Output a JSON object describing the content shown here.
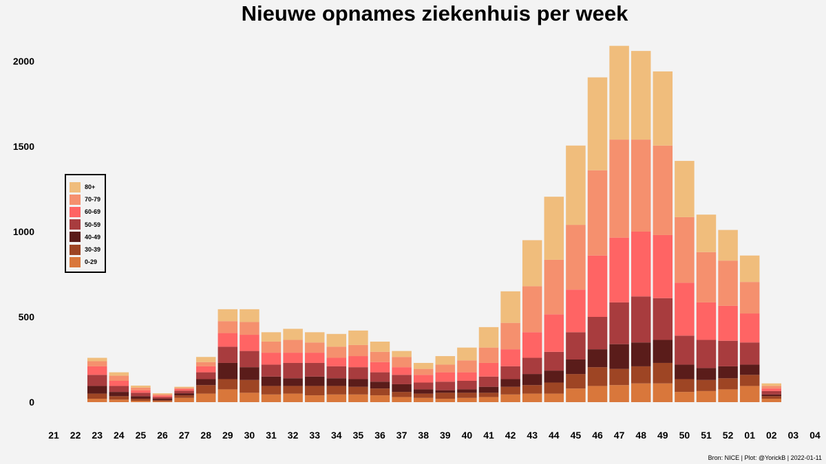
{
  "chart_data": {
    "type": "bar",
    "stacked": true,
    "title": "Nieuwe opnames ziekenhuis per week",
    "xlabel": "",
    "ylabel": "",
    "ylim": [
      0,
      2150
    ],
    "yticks": [
      0,
      500,
      1000,
      1500,
      2000
    ],
    "categories": [
      "21",
      "22",
      "23",
      "24",
      "25",
      "26",
      "27",
      "28",
      "29",
      "30",
      "31",
      "32",
      "33",
      "34",
      "35",
      "36",
      "37",
      "38",
      "39",
      "40",
      "41",
      "42",
      "43",
      "44",
      "45",
      "46",
      "47",
      "48",
      "49",
      "50",
      "51",
      "52",
      "01",
      "02",
      "03",
      "04"
    ],
    "legend_position": "left",
    "series": [
      {
        "name": "0-29",
        "color": "#d9773b",
        "values": [
          0,
          0,
          20,
          15,
          8,
          5,
          25,
          50,
          75,
          55,
          45,
          50,
          40,
          45,
          45,
          40,
          30,
          25,
          20,
          25,
          30,
          45,
          50,
          50,
          80,
          95,
          100,
          110,
          110,
          60,
          65,
          75,
          95,
          20,
          0,
          0
        ]
      },
      {
        "name": "30-39",
        "color": "#9e4524",
        "values": [
          0,
          0,
          30,
          20,
          12,
          7,
          15,
          50,
          60,
          75,
          50,
          45,
          55,
          50,
          45,
          40,
          30,
          25,
          35,
          30,
          25,
          45,
          50,
          65,
          85,
          110,
          95,
          100,
          120,
          75,
          65,
          65,
          65,
          15,
          0,
          0
        ]
      },
      {
        "name": "40-49",
        "color": "#5a1c1a",
        "values": [
          0,
          0,
          45,
          25,
          15,
          8,
          12,
          35,
          95,
          75,
          55,
          45,
          55,
          45,
          45,
          40,
          45,
          25,
          15,
          20,
          35,
          45,
          65,
          70,
          85,
          105,
          145,
          140,
          135,
          85,
          70,
          70,
          60,
          10,
          0,
          0
        ]
      },
      {
        "name": "50-59",
        "color": "#a83c3e",
        "values": [
          0,
          0,
          65,
          35,
          20,
          10,
          15,
          40,
          95,
          95,
          70,
          90,
          80,
          70,
          70,
          55,
          55,
          40,
          50,
          50,
          60,
          75,
          95,
          110,
          160,
          190,
          245,
          270,
          245,
          170,
          165,
          150,
          130,
          20,
          0,
          0
        ]
      },
      {
        "name": "60-69",
        "color": "#ff6464",
        "values": [
          0,
          0,
          50,
          30,
          15,
          8,
          10,
          35,
          80,
          95,
          70,
          60,
          60,
          50,
          65,
          60,
          45,
          45,
          55,
          50,
          80,
          100,
          150,
          220,
          250,
          360,
          380,
          380,
          370,
          310,
          220,
          205,
          170,
          15,
          0,
          0
        ]
      },
      {
        "name": "70-79",
        "color": "#f5906e",
        "values": [
          0,
          0,
          30,
          30,
          15,
          8,
          7,
          25,
          70,
          75,
          65,
          75,
          60,
          65,
          65,
          60,
          60,
          35,
          45,
          70,
          90,
          155,
          270,
          320,
          380,
          500,
          575,
          540,
          525,
          385,
          295,
          265,
          185,
          15,
          0,
          0
        ]
      },
      {
        "name": "80+",
        "color": "#f0bd7c",
        "values": [
          0,
          0,
          20,
          20,
          12,
          6,
          6,
          30,
          70,
          75,
          55,
          65,
          60,
          75,
          85,
          60,
          35,
          35,
          50,
          75,
          120,
          185,
          270,
          370,
          465,
          545,
          550,
          520,
          435,
          330,
          220,
          180,
          155,
          15,
          0,
          0
        ]
      }
    ]
  },
  "source_note": "Bron: NICE | Plot: @YorickB |  2022-01-11"
}
